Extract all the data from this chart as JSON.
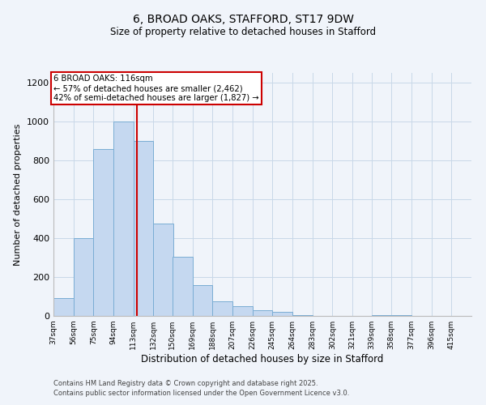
{
  "title1": "6, BROAD OAKS, STAFFORD, ST17 9DW",
  "title2": "Size of property relative to detached houses in Stafford",
  "xlabel": "Distribution of detached houses by size in Stafford",
  "ylabel": "Number of detached properties",
  "bar_left_edges": [
    37,
    56,
    75,
    94,
    113,
    132,
    150,
    169,
    188,
    207,
    226,
    245,
    264,
    283,
    302,
    321,
    339,
    358,
    377,
    396
  ],
  "bar_heights": [
    90,
    400,
    860,
    1000,
    900,
    475,
    305,
    160,
    75,
    50,
    30,
    20,
    5,
    0,
    0,
    0,
    5,
    3,
    2,
    1
  ],
  "bin_width": 19,
  "tick_labels": [
    "37sqm",
    "56sqm",
    "75sqm",
    "94sqm",
    "113sqm",
    "132sqm",
    "150sqm",
    "169sqm",
    "188sqm",
    "207sqm",
    "226sqm",
    "245sqm",
    "264sqm",
    "283sqm",
    "302sqm",
    "321sqm",
    "339sqm",
    "358sqm",
    "377sqm",
    "396sqm",
    "415sqm"
  ],
  "tick_positions": [
    37,
    56,
    75,
    94,
    113,
    132,
    150,
    169,
    188,
    207,
    226,
    245,
    264,
    283,
    302,
    321,
    339,
    358,
    377,
    396,
    415
  ],
  "bar_color": "#c5d8f0",
  "bar_edge_color": "#7aadd4",
  "grid_color": "#c8d8e8",
  "background_color": "#f0f4fa",
  "vline_x": 116,
  "vline_color": "#cc0000",
  "annotation_title": "6 BROAD OAKS: 116sqm",
  "annotation_line1": "← 57% of detached houses are smaller (2,462)",
  "annotation_line2": "42% of semi-detached houses are larger (1,827) →",
  "ylim": [
    0,
    1250
  ],
  "yticks": [
    0,
    200,
    400,
    600,
    800,
    1000,
    1200
  ],
  "footnote1": "Contains HM Land Registry data © Crown copyright and database right 2025.",
  "footnote2": "Contains public sector information licensed under the Open Government Licence v3.0."
}
